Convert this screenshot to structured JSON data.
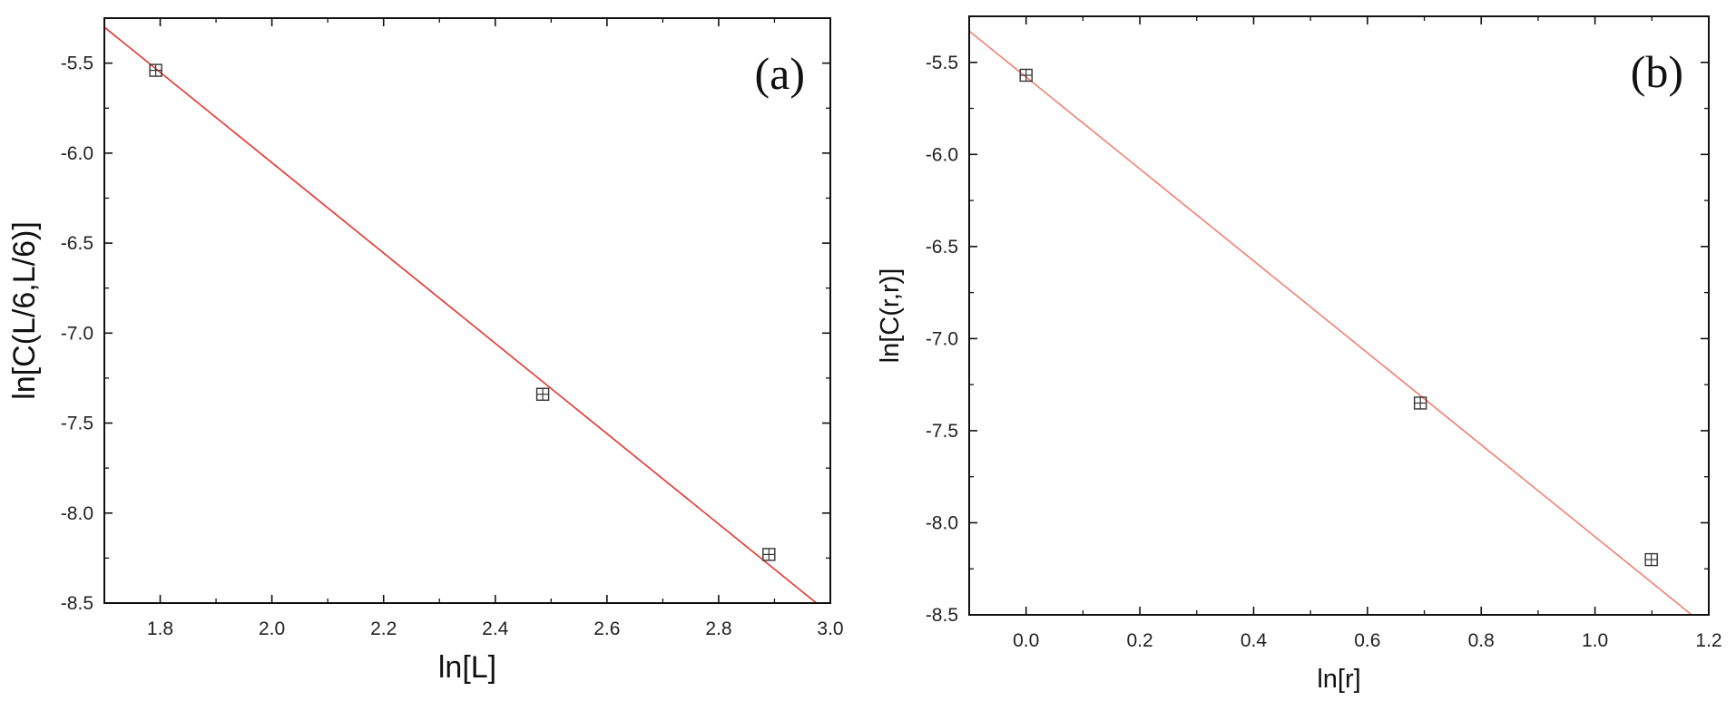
{
  "chart_data": [
    {
      "type": "scatter",
      "panel_label": "(a)",
      "xlabel": "ln[L]",
      "ylabel": "ln[C(L/6,L/6)]",
      "xlim": [
        1.7,
        3.0
      ],
      "ylim": [
        -8.5,
        -5.25
      ],
      "xticks": [
        1.8,
        2.0,
        2.2,
        2.4,
        2.6,
        2.8,
        3.0
      ],
      "xtick_labels": [
        "1.8",
        "2.0",
        "2.2",
        "2.4",
        "2.6",
        "2.8",
        "3.0"
      ],
      "yticks": [
        -5.5,
        -6.0,
        -6.5,
        -7.0,
        -7.5,
        -8.0,
        -8.5
      ],
      "ytick_labels": [
        "-5.5",
        "-6.0",
        "-6.5",
        "-7.0",
        "-7.5",
        "-8.0",
        "-8.5"
      ],
      "grid": false,
      "series": [
        {
          "x": [
            1.792,
            2.485,
            2.89
          ],
          "y": [
            -5.54,
            -7.34,
            -8.23
          ],
          "marker": "square-with-errorbars",
          "color": "#333333"
        }
      ],
      "fit_line": {
        "x": [
          1.7,
          2.975
        ],
        "y": [
          -5.3,
          -8.5
        ],
        "color": "#e8332e"
      }
    },
    {
      "type": "scatter",
      "panel_label": "(b)",
      "xlabel": "ln[r]",
      "ylabel": "ln[C(r,r)]",
      "xlim": [
        -0.1,
        1.2
      ],
      "ylim": [
        -8.5,
        -5.25
      ],
      "xticks": [
        0.0,
        0.2,
        0.4,
        0.6,
        0.8,
        1.0,
        1.2
      ],
      "xtick_labels": [
        "0.0",
        "0.2",
        "0.4",
        "0.6",
        "0.8",
        "1.0",
        "1.2"
      ],
      "yticks": [
        -5.5,
        -6.0,
        -6.5,
        -7.0,
        -7.5,
        -8.0,
        -8.5
      ],
      "ytick_labels": [
        "-5.5",
        "-6.0",
        "-6.5",
        "-7.0",
        "-7.5",
        "-8.0",
        "-8.5"
      ],
      "grid": false,
      "series": [
        {
          "x": [
            0.0,
            0.693,
            1.099
          ],
          "y": [
            -5.57,
            -7.35,
            -8.2
          ],
          "marker": "square-with-errorbars",
          "color": "#333333"
        }
      ],
      "fit_line": {
        "x": [
          -0.1,
          1.17
        ],
        "y": [
          -5.33,
          -8.5
        ],
        "color": "#f08070"
      }
    }
  ]
}
